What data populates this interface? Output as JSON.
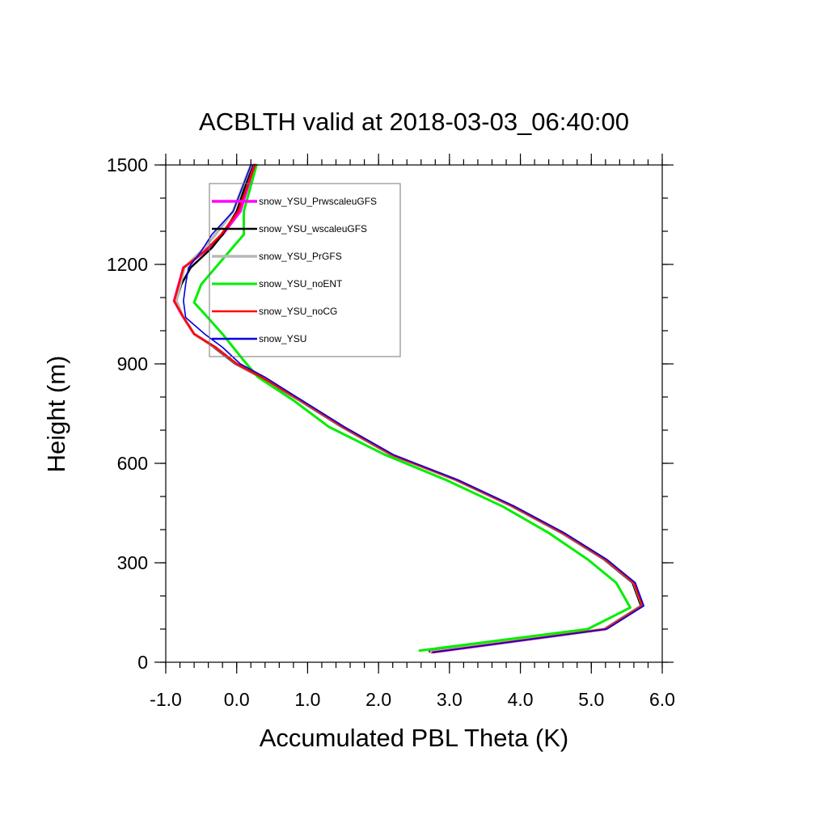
{
  "chart_data": {
    "type": "line",
    "title": "ACBLTH valid at 2018-03-03_06:40:00",
    "xlabel": "Accumulated PBL Theta (K)",
    "ylabel": "Height (m)",
    "xlim": [
      -1.0,
      6.0
    ],
    "ylim": [
      0,
      1500
    ],
    "xticks": [
      -1.0,
      0.0,
      1.0,
      2.0,
      3.0,
      4.0,
      5.0,
      6.0
    ],
    "xtick_labels": [
      "-1.0",
      "0.0",
      "1.0",
      "2.0",
      "3.0",
      "4.0",
      "5.0",
      "6.0"
    ],
    "yticks": [
      0,
      300,
      600,
      900,
      1200,
      1500
    ],
    "ytick_labels": [
      "0",
      "300",
      "600",
      "900",
      "1200",
      "1500"
    ],
    "grid": false,
    "legend_position": "top-left",
    "series": [
      {
        "name": "snow_YSU_PrwscaleuGFS",
        "color": "#ff00ff",
        "width": 3.5,
        "points": [
          [
            2.75,
            30
          ],
          [
            5.2,
            100
          ],
          [
            5.72,
            170
          ],
          [
            5.6,
            240
          ],
          [
            5.2,
            310
          ],
          [
            4.6,
            390
          ],
          [
            3.9,
            470
          ],
          [
            3.1,
            550
          ],
          [
            2.2,
            625
          ],
          [
            1.5,
            710
          ],
          [
            0.9,
            790
          ],
          [
            0.35,
            860
          ],
          [
            0.0,
            900
          ],
          [
            -0.3,
            950
          ],
          [
            -0.6,
            990
          ],
          [
            -0.75,
            1040
          ],
          [
            -0.88,
            1090
          ],
          [
            -0.75,
            1190
          ],
          [
            -0.45,
            1240
          ],
          [
            -0.2,
            1290
          ],
          [
            0.05,
            1360
          ],
          [
            0.25,
            1500
          ]
        ]
      },
      {
        "name": "snow_YSU_wscaleuGFS",
        "color": "#000000",
        "width": 2.5,
        "points": [
          [
            2.72,
            32
          ],
          [
            5.18,
            100
          ],
          [
            5.7,
            170
          ],
          [
            5.58,
            240
          ],
          [
            5.18,
            310
          ],
          [
            4.58,
            390
          ],
          [
            3.88,
            470
          ],
          [
            3.08,
            550
          ],
          [
            2.18,
            625
          ],
          [
            1.48,
            710
          ],
          [
            0.88,
            790
          ],
          [
            0.33,
            860
          ],
          [
            -0.02,
            900
          ],
          [
            -0.32,
            950
          ],
          [
            -0.6,
            990
          ],
          [
            -0.75,
            1040
          ],
          [
            -0.85,
            1090
          ],
          [
            -0.78,
            1140
          ],
          [
            -0.65,
            1190
          ],
          [
            -0.35,
            1250
          ],
          [
            -0.2,
            1290
          ],
          [
            0.0,
            1360
          ],
          [
            0.22,
            1500
          ]
        ]
      },
      {
        "name": "snow_YSU_PrGFS",
        "color": "#b8b8b8",
        "width": 3.5,
        "points": [
          [
            2.74,
            31
          ],
          [
            5.2,
            100
          ],
          [
            5.72,
            170
          ],
          [
            5.6,
            240
          ],
          [
            5.2,
            310
          ],
          [
            4.6,
            390
          ],
          [
            3.9,
            470
          ],
          [
            3.1,
            550
          ],
          [
            2.2,
            625
          ],
          [
            1.5,
            710
          ],
          [
            0.9,
            790
          ],
          [
            0.35,
            860
          ],
          [
            0.0,
            900
          ],
          [
            -0.3,
            950
          ],
          [
            -0.6,
            990
          ],
          [
            -0.75,
            1040
          ],
          [
            -0.85,
            1090
          ],
          [
            -0.74,
            1190
          ],
          [
            -0.5,
            1240
          ],
          [
            -0.3,
            1290
          ],
          [
            -0.05,
            1360
          ],
          [
            0.2,
            1500
          ]
        ]
      },
      {
        "name": "snow_YSU_noENT",
        "color": "#00ee00",
        "width": 3.0,
        "points": [
          [
            2.58,
            35
          ],
          [
            4.95,
            100
          ],
          [
            5.55,
            165
          ],
          [
            5.35,
            240
          ],
          [
            4.95,
            310
          ],
          [
            4.4,
            390
          ],
          [
            3.75,
            470
          ],
          [
            2.95,
            550
          ],
          [
            2.1,
            625
          ],
          [
            1.3,
            710
          ],
          [
            0.8,
            790
          ],
          [
            0.3,
            860
          ],
          [
            0.1,
            910
          ],
          [
            -0.2,
            990
          ],
          [
            -0.45,
            1050
          ],
          [
            -0.6,
            1085
          ],
          [
            -0.5,
            1140
          ],
          [
            -0.1,
            1240
          ],
          [
            0.1,
            1290
          ],
          [
            0.1,
            1360
          ],
          [
            0.28,
            1500
          ]
        ]
      },
      {
        "name": "snow_YSU_noCG",
        "color": "#ff0000",
        "width": 2.5,
        "points": [
          [
            2.76,
            30
          ],
          [
            5.2,
            100
          ],
          [
            5.72,
            170
          ],
          [
            5.6,
            240
          ],
          [
            5.2,
            310
          ],
          [
            4.6,
            390
          ],
          [
            3.9,
            470
          ],
          [
            3.1,
            550
          ],
          [
            2.2,
            625
          ],
          [
            1.5,
            710
          ],
          [
            0.9,
            790
          ],
          [
            0.35,
            860
          ],
          [
            0.0,
            900
          ],
          [
            -0.3,
            950
          ],
          [
            -0.6,
            990
          ],
          [
            -0.75,
            1040
          ],
          [
            -0.88,
            1090
          ],
          [
            -0.75,
            1190
          ],
          [
            -0.45,
            1240
          ],
          [
            -0.22,
            1290
          ],
          [
            0.02,
            1360
          ],
          [
            0.26,
            1500
          ]
        ]
      },
      {
        "name": "snow_YSU",
        "color": "#0000dd",
        "width": 1.6,
        "points": [
          [
            2.77,
            30
          ],
          [
            5.22,
            100
          ],
          [
            5.74,
            170
          ],
          [
            5.62,
            240
          ],
          [
            5.22,
            310
          ],
          [
            4.62,
            390
          ],
          [
            3.92,
            470
          ],
          [
            3.12,
            550
          ],
          [
            2.22,
            625
          ],
          [
            1.52,
            710
          ],
          [
            0.92,
            790
          ],
          [
            0.4,
            860
          ],
          [
            0.05,
            900
          ],
          [
            -0.2,
            950
          ],
          [
            -0.45,
            990
          ],
          [
            -0.72,
            1040
          ],
          [
            -0.75,
            1090
          ],
          [
            -0.72,
            1140
          ],
          [
            -0.68,
            1190
          ],
          [
            -0.5,
            1240
          ],
          [
            -0.35,
            1290
          ],
          [
            -0.05,
            1360
          ],
          [
            0.2,
            1500
          ]
        ]
      }
    ]
  }
}
